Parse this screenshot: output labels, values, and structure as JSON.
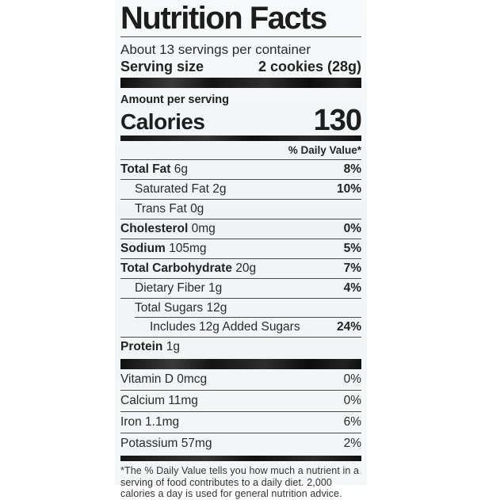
{
  "label": {
    "title": "Nutrition Facts",
    "servings_per_container": "About 13 servings per container",
    "serving_size_label": "Serving size",
    "serving_size_value": "2 cookies (28g)",
    "amount_per_serving": "Amount per serving",
    "calories_label": "Calories",
    "calories_value": "130",
    "daily_value_header": "% Daily Value*",
    "nutrients": [
      {
        "name": "Total Fat",
        "amount": "6g",
        "dv": "8%"
      },
      {
        "name": "Saturated Fat",
        "amount": "2g",
        "dv": "10%"
      },
      {
        "name": "Trans Fat",
        "amount": "0g",
        "dv": ""
      },
      {
        "name": "Cholesterol",
        "amount": "0mg",
        "dv": "0%"
      },
      {
        "name": "Sodium",
        "amount": "105mg",
        "dv": "5%"
      },
      {
        "name": "Total Carbohydrate",
        "amount": "20g",
        "dv": "7%"
      },
      {
        "name": "Dietary Fiber",
        "amount": "1g",
        "dv": "4%"
      },
      {
        "name": "Total Sugars",
        "amount": "12g",
        "dv": ""
      },
      {
        "name": "Includes 12g Added Sugars",
        "amount": "",
        "dv": "24%"
      },
      {
        "name": "Protein",
        "amount": "1g",
        "dv": ""
      }
    ],
    "vitamins": [
      {
        "name": "Vitamin D",
        "amount": "0mcg",
        "dv": "0%"
      },
      {
        "name": "Calcium",
        "amount": "11mg",
        "dv": "0%"
      },
      {
        "name": "Iron",
        "amount": "1.1mg",
        "dv": "6%"
      },
      {
        "name": "Potassium",
        "amount": "57mg",
        "dv": "2%"
      }
    ],
    "footnote": "*The % Daily Value tells you how much a nutrient in a serving of food contributes to a daily diet. 2,000 calories a day is used for general nutrition advice."
  },
  "colors": {
    "page_bg": "#ffffff",
    "label_bg": "#f1f5f6",
    "text": "#252525",
    "bar": "#141414"
  }
}
